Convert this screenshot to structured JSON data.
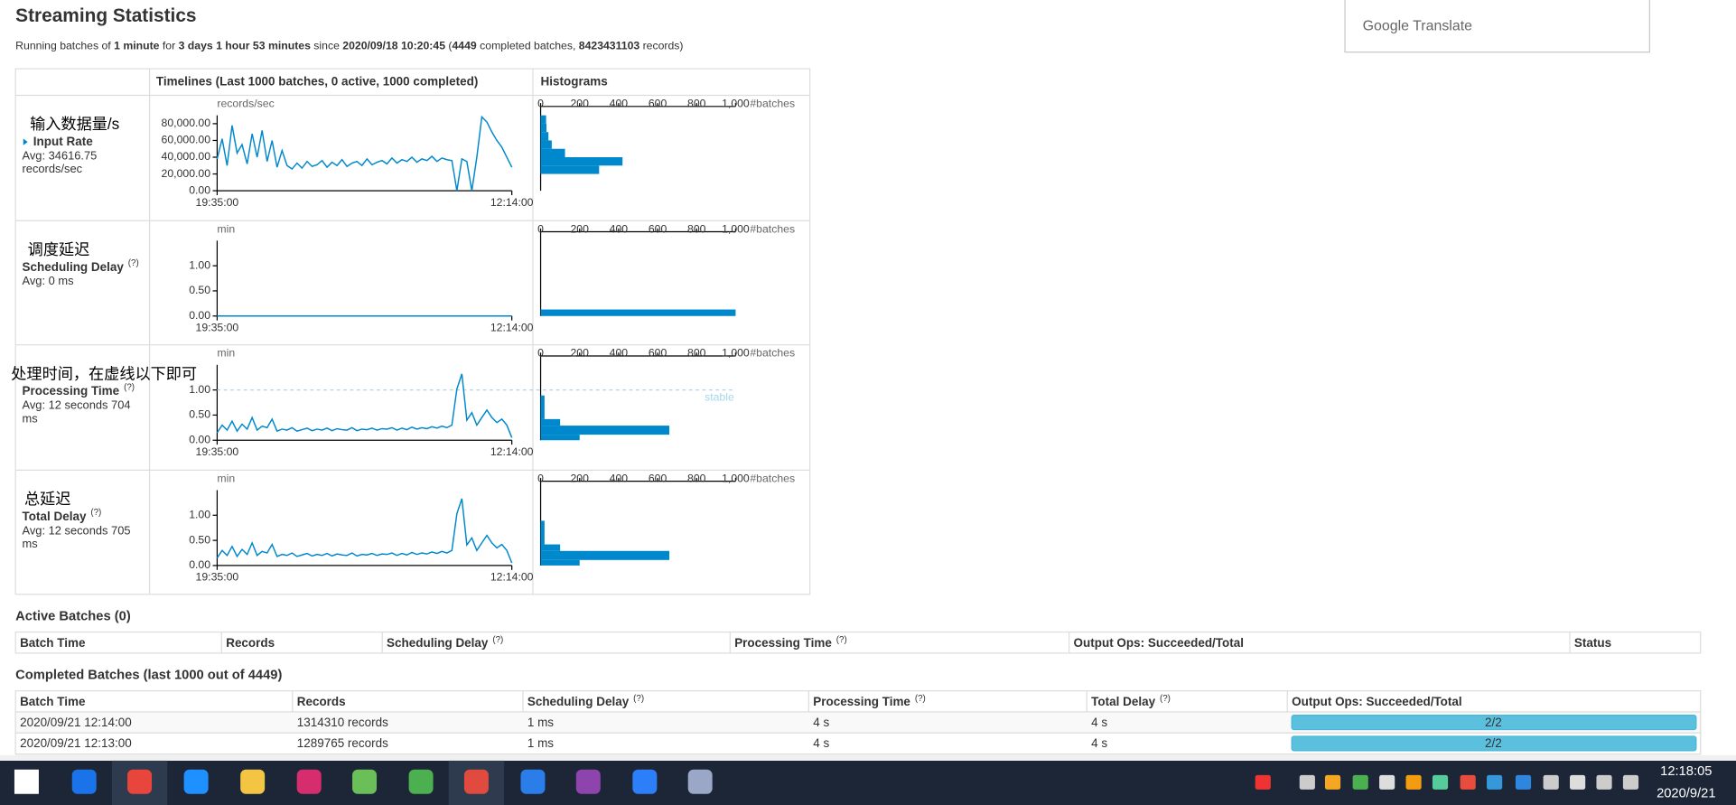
{
  "translate_popup": "Google Translate",
  "title": "Streaming Statistics",
  "summary": [
    {
      "text": "Running batches of ",
      "bold": false
    },
    {
      "text": "1 minute",
      "bold": true
    },
    {
      "text": " for ",
      "bold": false
    },
    {
      "text": "3 days 1 hour 53 minutes",
      "bold": true
    },
    {
      "text": " since ",
      "bold": false
    },
    {
      "text": "2020/09/18 10:20:45",
      "bold": true
    },
    {
      "text": " (",
      "bold": false
    },
    {
      "text": "4449",
      "bold": true
    },
    {
      "text": " completed batches, ",
      "bold": false
    },
    {
      "text": "8423431103",
      "bold": true
    },
    {
      "text": " records)",
      "bold": false
    }
  ],
  "stats": {
    "timelines_header": "Timelines (Last 1000 batches, 0 active, 1000 completed)",
    "histograms_header": "Histograms",
    "timeline_xticks": [
      "19:35:00",
      "12:14:00"
    ],
    "histogram_xlim": [
      0,
      1000
    ],
    "histogram_xticks": [
      0,
      200,
      400,
      600,
      800,
      {
        "value": 1000,
        "label": "1,000"
      }
    ],
    "histogram_unit": "#batches",
    "color": "#0088cc",
    "rows": [
      {
        "annotation": "输入数据量/s",
        "name": "Input Rate",
        "link": true,
        "avg": [
          "Avg: 34616.75",
          "records/sec"
        ],
        "timeline": {
          "unit": "records/sec",
          "ylim": [
            0,
            90000
          ],
          "yticks": [
            {
              "value": 0,
              "label": "0.00"
            },
            {
              "value": 20000,
              "label": "20,000.00"
            },
            {
              "value": 40000,
              "label": "40,000.00"
            },
            {
              "value": 60000,
              "label": "60,000.00"
            },
            {
              "value": 80000,
              "label": "80,000.00"
            }
          ],
          "values": [
            38000,
            62000,
            30000,
            78000,
            45000,
            55000,
            32000,
            68000,
            40000,
            72000,
            35000,
            60000,
            28000,
            48000,
            30000,
            26000,
            33000,
            27000,
            35000,
            29000,
            31000,
            36000,
            28000,
            34000,
            30000,
            37000,
            29000,
            33000,
            35000,
            30000,
            38000,
            31000,
            34000,
            36000,
            32000,
            39000,
            33000,
            37000,
            35000,
            40000,
            34000,
            38000,
            36000,
            41000,
            35000,
            39000,
            37000,
            36000,
            0,
            38000,
            35000,
            0,
            40000,
            88000,
            82000,
            70000,
            60000,
            52000,
            40000,
            28000
          ]
        },
        "histogram": {
          "bins": [
            10000,
            20000,
            30000,
            40000,
            50000,
            60000,
            70000,
            80000,
            90000
          ],
          "counts": [
            0,
            300,
            420,
            125,
            57,
            40,
            30,
            28
          ]
        }
      },
      {
        "annotation": "调度延迟",
        "name": "Scheduling Delay",
        "help": "(?)",
        "avg": [
          "Avg: 0 ms"
        ],
        "timeline": {
          "unit": "min",
          "ylim": [
            0,
            1.5
          ],
          "yticks": [
            {
              "value": 0,
              "label": "0.00"
            },
            {
              "value": 0.5,
              "label": "0.50"
            },
            {
              "value": 1,
              "label": "1.00"
            }
          ],
          "values": [
            0,
            0,
            0,
            0,
            0,
            0,
            0,
            0,
            0,
            0,
            0,
            0,
            0,
            0,
            0,
            0,
            0,
            0,
            0,
            0
          ]
        },
        "histogram": {
          "bins": [
            0,
            0.13
          ],
          "counts": [
            1000
          ]
        }
      },
      {
        "annotation": "处理时间，在虚线以下即可",
        "name": "Processing Time",
        "help": "(?)",
        "avg": [
          "Avg: 12 seconds 704",
          "ms"
        ],
        "threshold": 1,
        "threshold_label": "stable",
        "timeline": {
          "unit": "min",
          "ylim": [
            0,
            1.5
          ],
          "yticks": [
            {
              "value": 0,
              "label": "0.00"
            },
            {
              "value": 0.5,
              "label": "0.50"
            },
            {
              "value": 1,
              "label": "1.00"
            }
          ],
          "values": [
            0.15,
            0.3,
            0.2,
            0.38,
            0.18,
            0.32,
            0.22,
            0.45,
            0.2,
            0.28,
            0.25,
            0.42,
            0.18,
            0.22,
            0.2,
            0.25,
            0.18,
            0.21,
            0.24,
            0.19,
            0.22,
            0.2,
            0.24,
            0.19,
            0.23,
            0.21,
            0.2,
            0.25,
            0.19,
            0.22,
            0.21,
            0.24,
            0.2,
            0.23,
            0.22,
            0.25,
            0.2,
            0.24,
            0.21,
            0.26,
            0.22,
            0.25,
            0.23,
            0.27,
            0.24,
            0.28,
            0.25,
            0.3,
            1.02,
            1.32,
            0.4,
            0.55,
            0.3,
            0.45,
            0.6,
            0.45,
            0.35,
            0.42,
            0.3,
            0.05
          ]
        },
        "histogram": {
          "bins": [
            0,
            0.11,
            0.29,
            0.42,
            0.89
          ],
          "counts": [
            200,
            660,
            100,
            20
          ]
        }
      },
      {
        "annotation": "总延迟",
        "name": "Total Delay",
        "help": "(?)",
        "avg": [
          "Avg: 12 seconds 705",
          "ms"
        ],
        "timeline": {
          "unit": "min",
          "ylim": [
            0,
            1.5
          ],
          "yticks": [
            {
              "value": 0,
              "label": "0.00"
            },
            {
              "value": 0.5,
              "label": "0.50"
            },
            {
              "value": 1,
              "label": "1.00"
            }
          ],
          "values": [
            0.15,
            0.3,
            0.2,
            0.38,
            0.18,
            0.32,
            0.22,
            0.45,
            0.2,
            0.28,
            0.25,
            0.42,
            0.18,
            0.22,
            0.2,
            0.25,
            0.18,
            0.21,
            0.24,
            0.19,
            0.22,
            0.2,
            0.24,
            0.19,
            0.23,
            0.21,
            0.2,
            0.25,
            0.19,
            0.22,
            0.21,
            0.24,
            0.2,
            0.23,
            0.22,
            0.25,
            0.2,
            0.24,
            0.21,
            0.26,
            0.22,
            0.25,
            0.23,
            0.27,
            0.24,
            0.28,
            0.25,
            0.3,
            1.03,
            1.33,
            0.41,
            0.55,
            0.3,
            0.45,
            0.6,
            0.45,
            0.35,
            0.42,
            0.3,
            0.05
          ]
        },
        "histogram": {
          "bins": [
            0,
            0.11,
            0.29,
            0.42,
            0.89
          ],
          "counts": [
            200,
            660,
            100,
            20
          ]
        }
      }
    ]
  },
  "active_batches": {
    "title": "Active Batches (0)",
    "headers": [
      {
        "text": "Batch Time"
      },
      {
        "text": "Records"
      },
      {
        "text": "Scheduling Delay",
        "help": "(?)"
      },
      {
        "text": "Processing Time",
        "help": "(?)"
      },
      {
        "text": "Output Ops: Succeeded/Total"
      },
      {
        "text": "Status"
      }
    ]
  },
  "completed_batches": {
    "title": "Completed Batches (last 1000 out of 4449)",
    "headers": [
      {
        "text": "Batch Time"
      },
      {
        "text": "Records"
      },
      {
        "text": "Scheduling Delay",
        "help": "(?)"
      },
      {
        "text": "Processing Time",
        "help": "(?)"
      },
      {
        "text": "Total Delay",
        "help": "(?)"
      },
      {
        "text": "Output Ops: Succeeded/Total"
      }
    ],
    "rows": [
      [
        "2020/09/21 12:14:00",
        "1314310 records",
        "1 ms",
        "4 s",
        "4 s",
        "2/2"
      ],
      [
        "2020/09/21 12:13:00",
        "1289765 records",
        "1 ms",
        "4 s",
        "4 s",
        "2/2"
      ]
    ]
  },
  "taskbar": {
    "time": "12:18:05",
    "date": "2020/9/21"
  }
}
